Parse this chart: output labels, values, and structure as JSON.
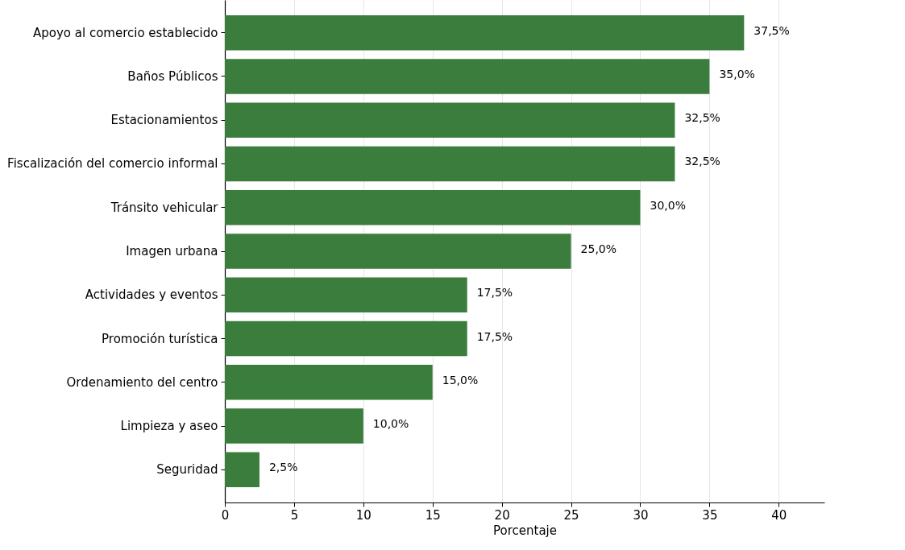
{
  "chart_data": {
    "type": "bar",
    "orientation": "horizontal",
    "xlabel": "Porcentaje",
    "categories": [
      "Apoyo al comercio establecido",
      "Baños Públicos",
      "Estacionamientos",
      "Fiscalización del comercio informal",
      "Tránsito vehicular",
      "Imagen urbana",
      "Actividades y eventos",
      "Promoción turística",
      "Ordenamiento del centro",
      "Limpieza y aseo",
      "Seguridad"
    ],
    "values": [
      37.5,
      35.0,
      32.5,
      32.5,
      30.0,
      25.0,
      17.5,
      17.5,
      15.0,
      10.0,
      2.5
    ],
    "value_labels": [
      "37,5%",
      "35,0%",
      "32,5%",
      "32,5%",
      "30,0%",
      "25,0%",
      "17,5%",
      "17,5%",
      "15,0%",
      "10,0%",
      "2,5%"
    ],
    "color": "#3a7d3c",
    "xlim": [
      0,
      43.3
    ],
    "xticks": [
      0,
      5,
      10,
      15,
      20,
      25,
      30,
      35,
      40
    ],
    "grid": "x"
  }
}
